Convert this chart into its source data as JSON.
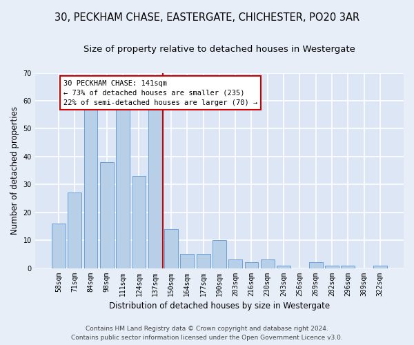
{
  "title1": "30, PECKHAM CHASE, EASTERGATE, CHICHESTER, PO20 3AR",
  "title2": "Size of property relative to detached houses in Westergate",
  "xlabel": "Distribution of detached houses by size in Westergate",
  "ylabel": "Number of detached properties",
  "categories": [
    "58sqm",
    "71sqm",
    "84sqm",
    "98sqm",
    "111sqm",
    "124sqm",
    "137sqm",
    "150sqm",
    "164sqm",
    "177sqm",
    "190sqm",
    "203sqm",
    "216sqm",
    "230sqm",
    "243sqm",
    "256sqm",
    "269sqm",
    "282sqm",
    "296sqm",
    "309sqm",
    "322sqm"
  ],
  "values": [
    16,
    27,
    57,
    38,
    58,
    33,
    57,
    14,
    5,
    5,
    10,
    3,
    2,
    3,
    1,
    0,
    2,
    1,
    1,
    0,
    1
  ],
  "bar_color": "#b8cfe8",
  "bar_edgecolor": "#6a9fd8",
  "vline_index": 6.5,
  "annotation_text_line1": "30 PECKHAM CHASE: 141sqm",
  "annotation_text_line2": "← 73% of detached houses are smaller (235)",
  "annotation_text_line3": "22% of semi-detached houses are larger (70) →",
  "annotation_box_facecolor": "#ffffff",
  "annotation_box_edgecolor": "#cc0000",
  "vline_color": "#cc0000",
  "ylim": [
    0,
    70
  ],
  "yticks": [
    0,
    10,
    20,
    30,
    40,
    50,
    60,
    70
  ],
  "footer_line1": "Contains HM Land Registry data © Crown copyright and database right 2024.",
  "footer_line2": "Contains public sector information licensed under the Open Government Licence v3.0.",
  "plot_bg_color": "#dce6f5",
  "fig_bg_color": "#e8eef8",
  "grid_color": "#ffffff",
  "title_fontsize": 10.5,
  "subtitle_fontsize": 9.5,
  "ylabel_fontsize": 8.5,
  "xlabel_fontsize": 8.5,
  "tick_fontsize": 7,
  "annotation_fontsize": 7.5,
  "footer_fontsize": 6.5
}
